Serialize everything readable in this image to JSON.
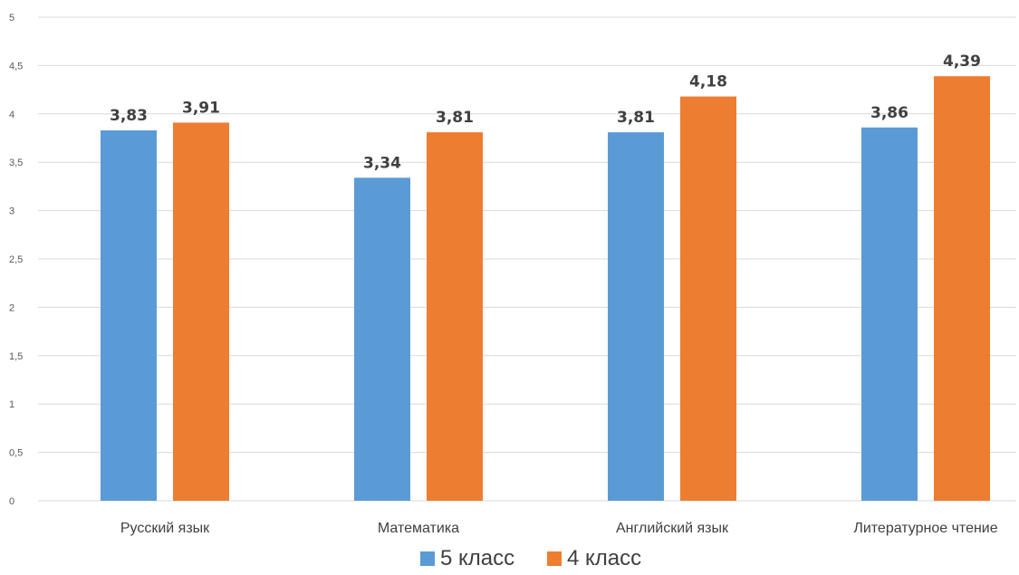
{
  "chart_data": {
    "type": "bar",
    "categories": [
      "Русский язык",
      "Математика",
      "Английский язык",
      "Литературное чтение"
    ],
    "series": [
      {
        "name": "5 класс",
        "values": [
          3.83,
          3.34,
          3.81,
          3.86
        ],
        "labels": [
          "3,83",
          "3,34",
          "3,81",
          "3,86"
        ],
        "color": "#5B9BD5"
      },
      {
        "name": "4 класс",
        "values": [
          3.91,
          3.81,
          4.18,
          4.39
        ],
        "labels": [
          "3,91",
          "3,81",
          "4,18",
          "4,39"
        ],
        "color": "#ED7D31"
      }
    ],
    "ylim": [
      0,
      5
    ],
    "yticks": [
      0,
      0.5,
      1,
      1.5,
      2,
      2.5,
      3,
      3.5,
      4,
      4.5,
      5
    ],
    "ytick_labels": [
      "0",
      "0,5",
      "1",
      "1,5",
      "2",
      "2,5",
      "3",
      "3,5",
      "4",
      "4,5",
      "5"
    ],
    "grid": true,
    "legend_position": "bottom",
    "gridline_color": "#D9D9D9"
  }
}
